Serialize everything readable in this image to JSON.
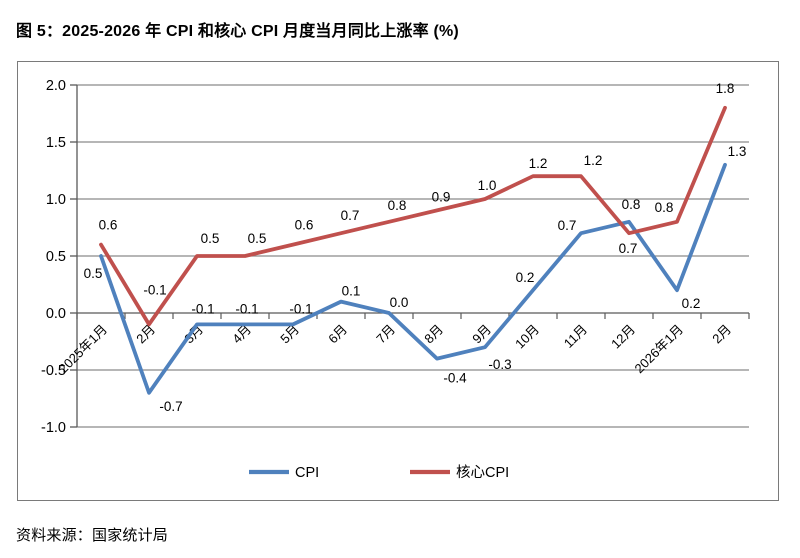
{
  "title": "图 5：2025-2026 年 CPI 和核心 CPI 月度当月同比上涨率 (%)",
  "source": "资料来源：国家统计局",
  "chart_data": {
    "type": "line",
    "title": "图 5：2025-2026 年 CPI 和核心 CPI 月度当月同比上涨率 (%)",
    "categories": [
      "2025年1月",
      "2月",
      "3月",
      "4月",
      "5月",
      "6月",
      "7月",
      "8月",
      "9月",
      "10月",
      "11月",
      "12月",
      "2026年1月",
      "2月"
    ],
    "series": [
      {
        "name": "CPI",
        "color": "#4F81BD",
        "values": [
          0.5,
          -0.7,
          -0.1,
          -0.1,
          -0.1,
          0.1,
          0.0,
          -0.4,
          -0.3,
          0.2,
          0.7,
          0.8,
          0.2,
          1.3
        ]
      },
      {
        "name": "核心CPI",
        "color": "#C0504D",
        "values": [
          0.6,
          -0.1,
          0.5,
          0.5,
          0.6,
          0.7,
          0.8,
          0.9,
          1.0,
          1.2,
          1.2,
          0.7,
          0.8,
          1.8
        ]
      }
    ],
    "ylim": [
      -1.0,
      2.0
    ],
    "yticks": [
      2.0,
      1.5,
      1.0,
      0.5,
      0.0,
      -0.5,
      -1.0
    ],
    "grid": true,
    "data_labels": true,
    "legend_position": "bottom",
    "gridline_color": "#8a8a8a",
    "axis_color": "#595959"
  }
}
